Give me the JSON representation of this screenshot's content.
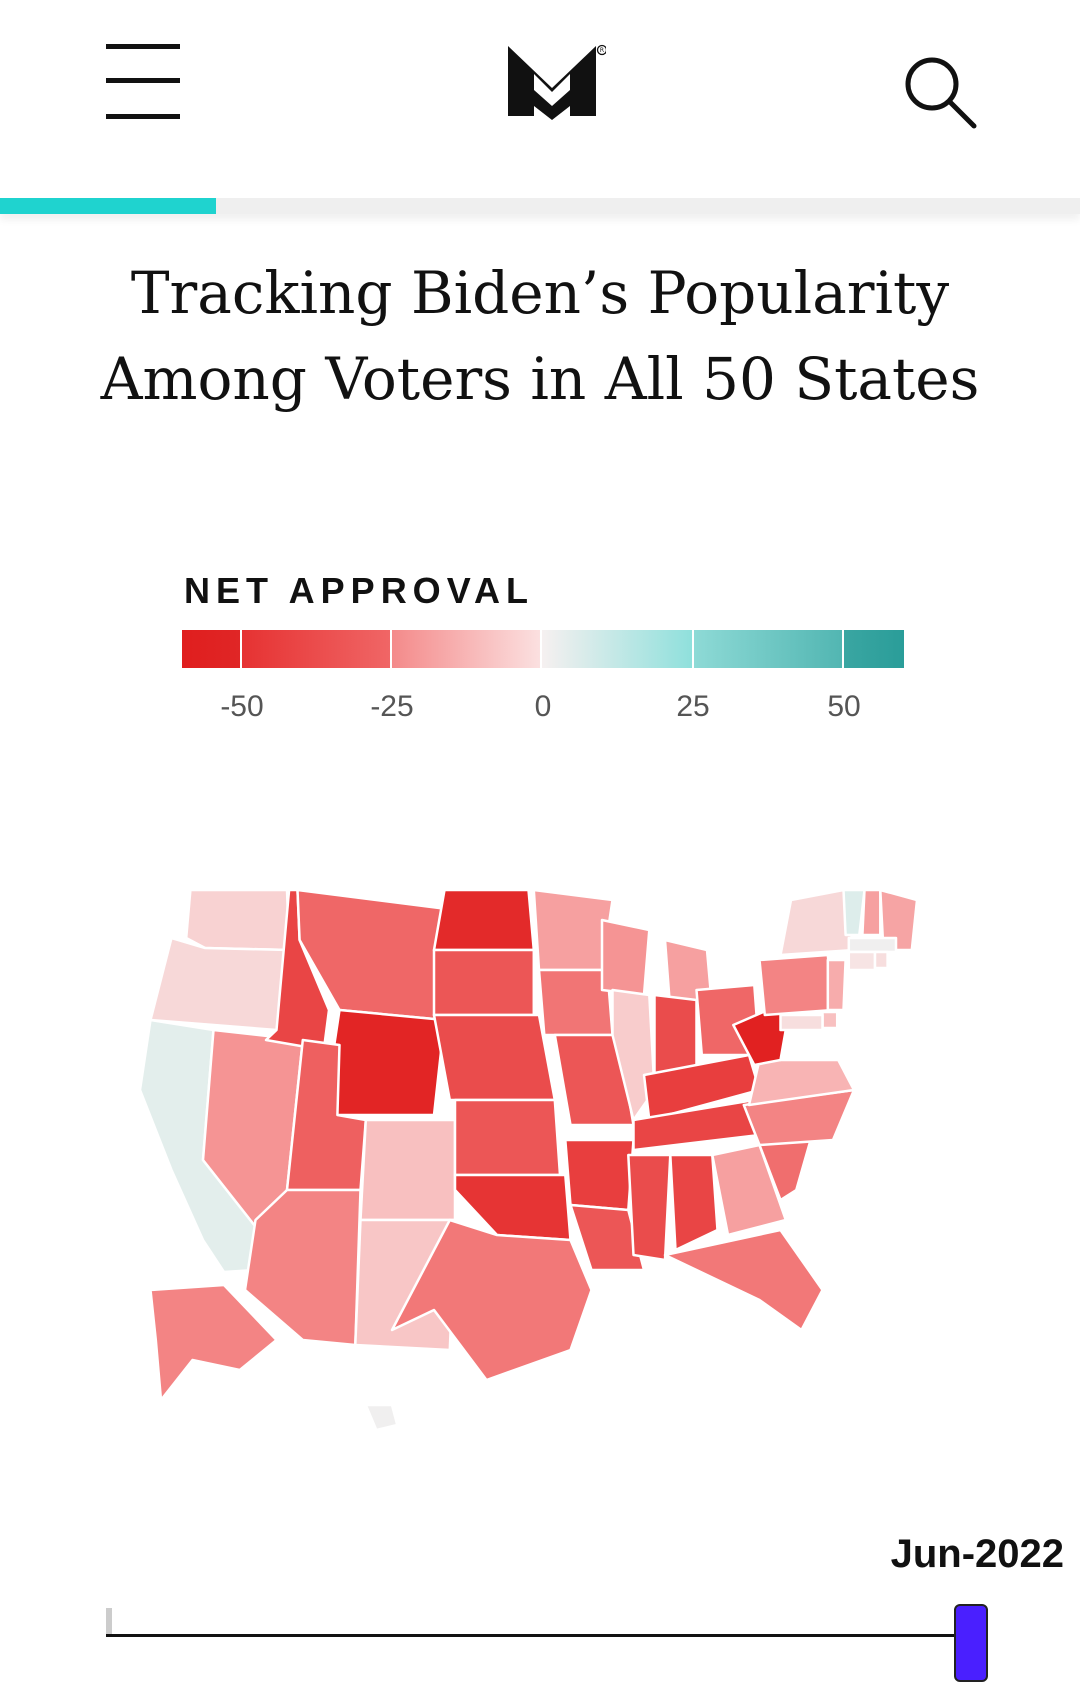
{
  "header": {
    "logo_icon": "m-logo-icon",
    "menu_icon": "hamburger-menu-icon",
    "search_icon": "search-icon",
    "reading_progress": 0.2
  },
  "article": {
    "title_line1": "Tracking Biden’s Popularity",
    "title_line2": "Among Voters in All 50 States"
  },
  "legend": {
    "title": "NET APPROVAL",
    "ticks": [
      "-50",
      "-25",
      "0",
      "25",
      "50"
    ]
  },
  "timeline": {
    "current_label": "Jun-2022",
    "position": 1.0
  },
  "colors": {
    "accent": "#1fd3cf",
    "slider_thumb": "#4a1fff",
    "negative_strong": "#e01e1e",
    "neutral": "#f7f0f0",
    "positive_strong": "#2a9d99"
  },
  "chart_data": {
    "type": "choropleth",
    "title": "",
    "legend_range": [
      -60,
      60
    ],
    "states": [
      {
        "code": "WA",
        "value": -5
      },
      {
        "code": "OR",
        "value": -4
      },
      {
        "code": "CA",
        "value": 6
      },
      {
        "code": "NV",
        "value": -18
      },
      {
        "code": "ID",
        "value": -40
      },
      {
        "code": "MT",
        "value": -30
      },
      {
        "code": "WY",
        "value": -55
      },
      {
        "code": "UT",
        "value": -32
      },
      {
        "code": "AZ",
        "value": -22
      },
      {
        "code": "CO",
        "value": -8
      },
      {
        "code": "NM",
        "value": -7
      },
      {
        "code": "ND",
        "value": -52
      },
      {
        "code": "SD",
        "value": -35
      },
      {
        "code": "NE",
        "value": -38
      },
      {
        "code": "KS",
        "value": -35
      },
      {
        "code": "OK",
        "value": -45
      },
      {
        "code": "TX",
        "value": -25
      },
      {
        "code": "MN",
        "value": -15
      },
      {
        "code": "IA",
        "value": -26
      },
      {
        "code": "MO",
        "value": -35
      },
      {
        "code": "AR",
        "value": -42
      },
      {
        "code": "LA",
        "value": -35
      },
      {
        "code": "WI",
        "value": -18
      },
      {
        "code": "IL",
        "value": -6
      },
      {
        "code": "MI",
        "value": -15
      },
      {
        "code": "IN",
        "value": -38
      },
      {
        "code": "OH",
        "value": -30
      },
      {
        "code": "KY",
        "value": -42
      },
      {
        "code": "TN",
        "value": -40
      },
      {
        "code": "MS",
        "value": -38
      },
      {
        "code": "AL",
        "value": -40
      },
      {
        "code": "GA",
        "value": -15
      },
      {
        "code": "FL",
        "value": -25
      },
      {
        "code": "SC",
        "value": -28
      },
      {
        "code": "NC",
        "value": -22
      },
      {
        "code": "VA",
        "value": -10
      },
      {
        "code": "WV",
        "value": -58
      },
      {
        "code": "PA",
        "value": -22
      },
      {
        "code": "NY",
        "value": -4
      },
      {
        "code": "VT",
        "value": 8
      },
      {
        "code": "NH",
        "value": -15
      },
      {
        "code": "ME",
        "value": -14
      },
      {
        "code": "MA",
        "value": 2
      },
      {
        "code": "CT",
        "value": -2
      },
      {
        "code": "RI",
        "value": -3
      },
      {
        "code": "NJ",
        "value": -12
      },
      {
        "code": "DE",
        "value": -8
      },
      {
        "code": "MD",
        "value": -3
      },
      {
        "code": "AK",
        "value": -22
      },
      {
        "code": "HI",
        "value": 2
      }
    ]
  }
}
